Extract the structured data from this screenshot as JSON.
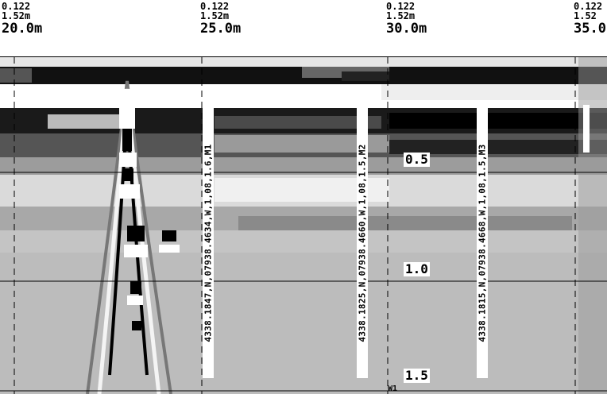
{
  "header": {
    "markers": [
      {
        "line1": "0.122",
        "line2": "1.52m",
        "distance": "20.0m"
      },
      {
        "line1": "0.122",
        "line2": "1.52m",
        "distance": "25.0m"
      },
      {
        "line1": "0.122",
        "line2": "1.52m",
        "distance": "30.0m"
      },
      {
        "line1": "0.122",
        "line2": "1.52",
        "distance": "35.0"
      }
    ]
  },
  "depth_labels": [
    "0.5",
    "1.0",
    "1.5"
  ],
  "gps_markers": [
    {
      "text": "4338.1847,N,07938.4634,W,1,08,1.6,M1"
    },
    {
      "text": "4338.1825,N,07938.4660,W,1,08,1.5,M2"
    },
    {
      "text": "4338.1815,N,07938.4668,W,1,08,1.5,M3"
    }
  ],
  "footer_mark": "W1",
  "colors": {
    "background": "#ffffff",
    "radar_base": "#bdbdbd",
    "text": "#000000"
  }
}
